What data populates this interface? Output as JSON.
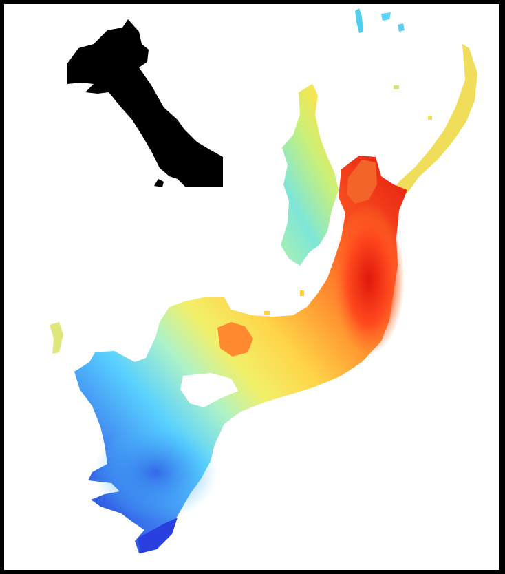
{
  "map": {
    "kind": "heat-gradient-map",
    "colormap": [
      "#1f2bd6",
      "#3f7cf0",
      "#47c6ff",
      "#7ef0e0",
      "#e6f07a",
      "#ffe44a",
      "#ffb43a",
      "#ff7a2a",
      "#ff3a1a",
      "#e02010"
    ],
    "inset_locator": {
      "fill": "#000000"
    },
    "background": "#ffffff",
    "border": "#000000"
  }
}
